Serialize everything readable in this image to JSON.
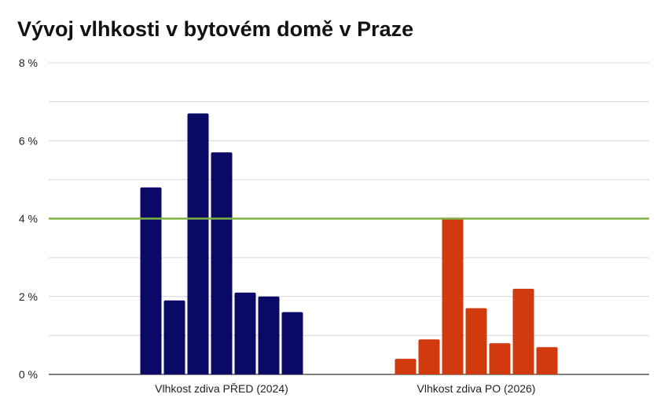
{
  "chart_data": {
    "type": "bar",
    "title": "Vývoj vlhkosti v bytovém domě v Praze",
    "categories": [
      "Vlhkost zdiva PŘED (2024)",
      "Vlhkost zdiva PO (2026)"
    ],
    "groups": [
      {
        "category": "Vlhkost zdiva PŘED (2024)",
        "color": "#0a0a66",
        "values": [
          4.8,
          1.9,
          6.7,
          5.7,
          2.1,
          2.0,
          1.6
        ]
      },
      {
        "category": "Vlhkost zdiva PO (2026)",
        "color": "#d03a0c",
        "values": [
          0.4,
          0.9,
          4.0,
          1.7,
          0.8,
          2.2,
          0.7
        ]
      }
    ],
    "ylim": [
      0,
      8
    ],
    "yticks": [
      {
        "value": 0,
        "label": "0 %"
      },
      {
        "value": 2,
        "label": "2 %"
      },
      {
        "value": 4,
        "label": "4 %"
      },
      {
        "value": 6,
        "label": "6 %"
      },
      {
        "value": 8,
        "label": "8 %"
      }
    ],
    "reference_line": {
      "value": 4,
      "color": "#7cb342"
    },
    "grid": true
  }
}
